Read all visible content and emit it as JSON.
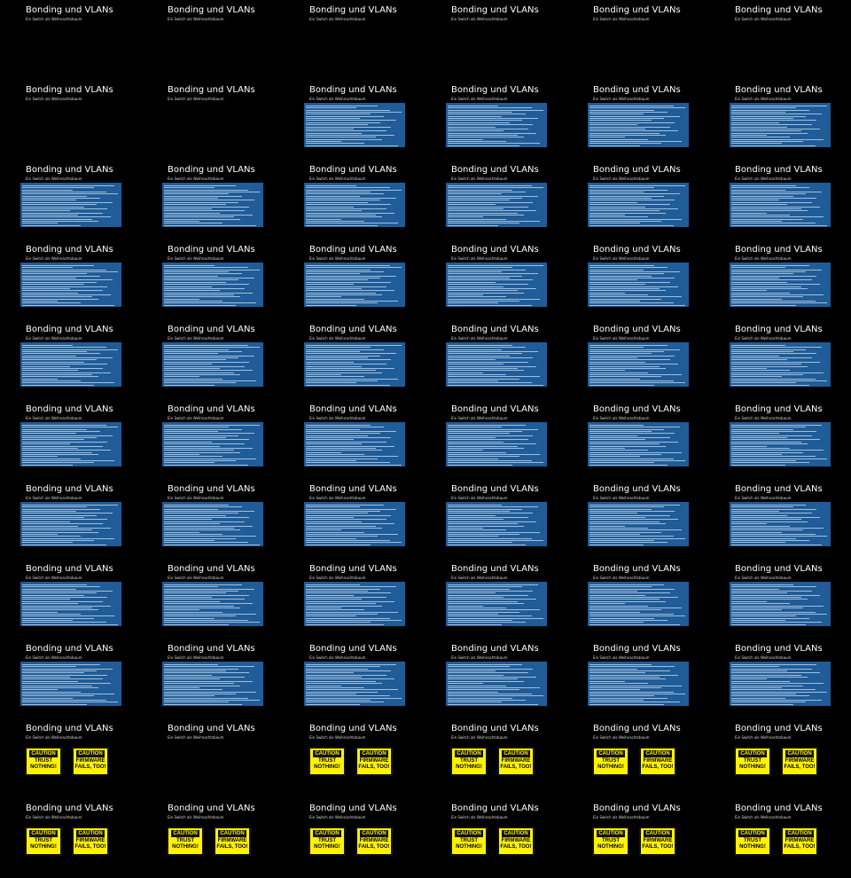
{
  "slide": {
    "title": "Bonding und VLANs",
    "subtitle": "Ein Switch als Weihnachtsbaum"
  },
  "caution_signs": {
    "left": {
      "heading": "CAUTION",
      "text": "TRUST NOTHING!"
    },
    "right": {
      "heading": "CAUTION",
      "text": "FIRMWARE FAILS, TOO!"
    }
  },
  "thumbnails": [
    [
      "blank",
      "blank",
      "blank",
      "blank",
      "blank",
      "blank"
    ],
    [
      "blank",
      "blank",
      "log",
      "log",
      "log",
      "log"
    ],
    [
      "log",
      "log",
      "log",
      "log",
      "log",
      "log"
    ],
    [
      "log",
      "log",
      "log",
      "log",
      "log",
      "log"
    ],
    [
      "log",
      "log",
      "log",
      "log",
      "log",
      "log"
    ],
    [
      "log",
      "log",
      "log",
      "log",
      "log",
      "log"
    ],
    [
      "log",
      "log",
      "log",
      "log",
      "log",
      "log"
    ],
    [
      "log",
      "log",
      "log",
      "log",
      "log",
      "log"
    ],
    [
      "log",
      "log",
      "log",
      "log",
      "log",
      "log"
    ],
    [
      "caution",
      "blank",
      "caution",
      "caution",
      "caution",
      "caution"
    ],
    [
      "caution",
      "caution",
      "caution",
      "caution",
      "caution",
      "caution"
    ]
  ],
  "colors": {
    "background": "#000000",
    "log_panel": "#1f5c98",
    "caution_yellow": "#fff200"
  }
}
